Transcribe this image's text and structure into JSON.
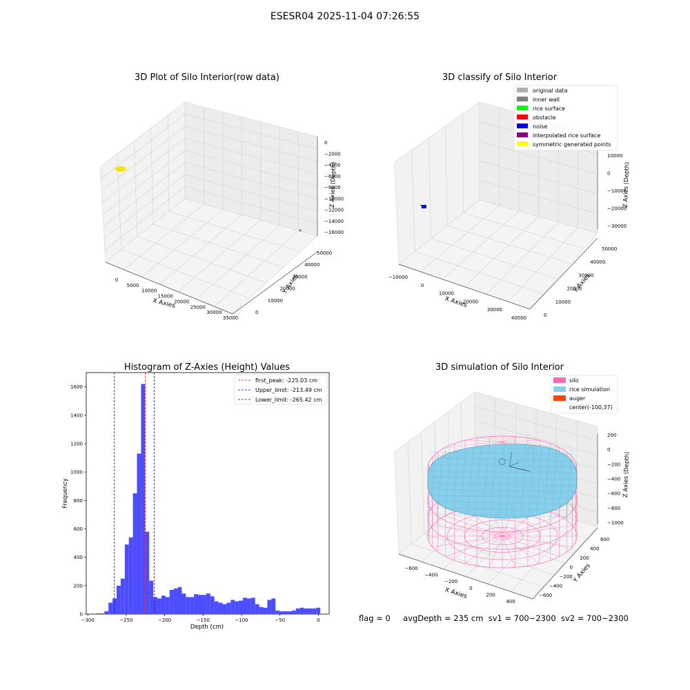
{
  "suptitle": "ESESR04 2025-11-04 07:26:55",
  "footer": {
    "flag": "flag = 0",
    "avg_depth": "avgDepth = 235 cm",
    "sv1": "sv1 = 700~2300",
    "sv2": "sv2 = 700~2300"
  },
  "chart_data": [
    {
      "type": "scatter3d",
      "title": "3D Plot of Silo Interior(row data)",
      "xlabel": "X Axies",
      "ylabel": "Y Axies",
      "zlabel": "Z Axies (Depth)",
      "x_ticks": [
        "0",
        "5000",
        "10000",
        "15000",
        "20000",
        "25000",
        "30000",
        "35000"
      ],
      "y_ticks": [
        "0",
        "10000",
        "20000",
        "30000",
        "40000",
        "50000"
      ],
      "z_ticks": [
        "0",
        "−2000",
        "−4000",
        "−6000",
        "−8000",
        "−10000",
        "−12000",
        "−14000",
        "−16000"
      ],
      "point_clusters": [
        {
          "color": "#f5e313",
          "label": "main point cluster"
        },
        {
          "color": "#8a8aa8",
          "label": "outlier point"
        }
      ]
    },
    {
      "type": "scatter3d",
      "title": "3D classify of Silo Interior",
      "xlabel": "X Axies",
      "ylabel": "Y Axies",
      "zlabel": "Z Axies (Depth)",
      "x_ticks": [
        "−10000",
        "0",
        "10000",
        "20000",
        "30000",
        "40000"
      ],
      "y_ticks": [
        "0",
        "10000",
        "20000",
        "30000",
        "40000",
        "50000"
      ],
      "z_ticks": [
        "10000",
        "0",
        "−10000",
        "−20000",
        "−30000"
      ],
      "legend": [
        {
          "label": "original data",
          "color": "#b0b0b0"
        },
        {
          "label": "inner wall",
          "color": "#808080"
        },
        {
          "label": "rice surface",
          "color": "#00ff00"
        },
        {
          "label": "obstacle",
          "color": "#ff0000"
        },
        {
          "label": "noise",
          "color": "#0000ff"
        },
        {
          "label": "interpolated rice surface",
          "color": "#800080"
        },
        {
          "label": "symmetric generated points",
          "color": "#ffff00"
        }
      ]
    },
    {
      "type": "bar",
      "title": "Histogram of Z-Axies (Height) Values",
      "xlabel": "Depth (cm)",
      "ylabel": "Frequency",
      "xlim": [
        -302,
        14
      ],
      "ylim": [
        0,
        1700
      ],
      "x_ticks": [
        -300,
        -250,
        -200,
        -150,
        -100,
        -50,
        0
      ],
      "y_ticks": [
        0,
        200,
        400,
        600,
        800,
        1000,
        1200,
        1400,
        1600
      ],
      "bar_color": "#4d4dff",
      "bin_width": 5.3,
      "bins_start": [
        -289,
        -283.7,
        -278.4,
        -273.1,
        -267.8,
        -262.5,
        -257.2,
        -251.9,
        -246.6,
        -241.3,
        -236,
        -230.7,
        -225.4,
        -220.1,
        -214.8,
        -209.5,
        -204.2,
        -198.9,
        -193.6,
        -188.3,
        -183,
        -177.7,
        -172.4,
        -167.1,
        -161.8,
        -156.5,
        -151.2,
        -145.9,
        -140.6,
        -135.3,
        -130,
        -124.7,
        -119.4,
        -114.1,
        -108.8,
        -103.5,
        -98.2,
        -92.9,
        -87.6,
        -82.3,
        -77,
        -71.7,
        -66.4,
        -61.1,
        -55.8,
        -50.5,
        -45.2,
        -39.9,
        -34.6,
        -29.3,
        -24,
        -18.7,
        -13.4,
        -8.1,
        -2.8
      ],
      "values": [
        5,
        5,
        20,
        80,
        110,
        200,
        250,
        490,
        540,
        850,
        1130,
        1620,
        580,
        235,
        120,
        110,
        130,
        120,
        170,
        180,
        190,
        145,
        120,
        120,
        140,
        135,
        135,
        145,
        125,
        90,
        80,
        70,
        80,
        100,
        90,
        95,
        115,
        110,
        115,
        70,
        50,
        45,
        100,
        110,
        25,
        20,
        20,
        20,
        25,
        40,
        45,
        40,
        40,
        40,
        45
      ],
      "lines": [
        {
          "name": "first_peak: -225.03 cm",
          "x": -225.03,
          "color": "#ff0000"
        },
        {
          "name": "Upper_limit: -213.49 cm",
          "x": -213.49,
          "color": "#0000cc"
        },
        {
          "name": "Lower_limit: -265.42 cm",
          "x": -265.42,
          "color": "#0000cc"
        }
      ]
    },
    {
      "type": "surface3d",
      "title": "3D simulation of Silo Interior",
      "xlabel": "X Axies",
      "ylabel": "Y Axies",
      "zlabel": "Z Axies (Depth)",
      "x_ticks": [
        "−600",
        "−400",
        "−200",
        "0",
        "200",
        "400"
      ],
      "y_ticks": [
        "−600",
        "−400",
        "−200",
        "0",
        "200",
        "400",
        "600"
      ],
      "z_ticks": [
        "200",
        "0",
        "−200",
        "−400",
        "−600",
        "−800",
        "−1000"
      ],
      "legend": [
        {
          "label": "silo",
          "color": "#ff69b4"
        },
        {
          "label": "rice simulation",
          "color": "#87ceeb"
        },
        {
          "label": "auger",
          "color": "#ff4500"
        },
        {
          "label": "center(-100,37)",
          "color": ""
        }
      ]
    }
  ]
}
